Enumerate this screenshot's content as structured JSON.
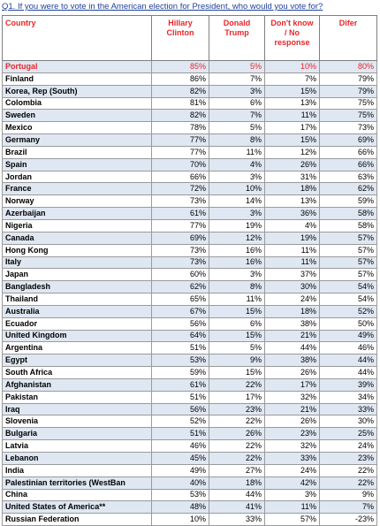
{
  "question": "Q1. If you were to vote in the American election for President, who would you vote for?",
  "columns": {
    "country": "Country",
    "clinton": [
      "Hillary",
      "Clinton"
    ],
    "trump": [
      "Donald",
      "Trump"
    ],
    "dontknow": [
      "Don't know",
      "/ No",
      "response"
    ],
    "differ": "Difer"
  },
  "rows": [
    {
      "country": "Portugal",
      "hc": "85%",
      "dt": "5%",
      "dk": "10%",
      "dif": "80%"
    },
    {
      "country": "Finland",
      "hc": "86%",
      "dt": "7%",
      "dk": "7%",
      "dif": "79%"
    },
    {
      "country": "Korea, Rep (South)",
      "hc": "82%",
      "dt": "3%",
      "dk": "15%",
      "dif": "79%"
    },
    {
      "country": "Colombia",
      "hc": "81%",
      "dt": "6%",
      "dk": "13%",
      "dif": "75%"
    },
    {
      "country": "Sweden",
      "hc": "82%",
      "dt": "7%",
      "dk": "11%",
      "dif": "75%"
    },
    {
      "country": "Mexico",
      "hc": "78%",
      "dt": "5%",
      "dk": "17%",
      "dif": "73%"
    },
    {
      "country": "Germany",
      "hc": "77%",
      "dt": "8%",
      "dk": "15%",
      "dif": "69%"
    },
    {
      "country": "Brazil",
      "hc": "77%",
      "dt": "11%",
      "dk": "12%",
      "dif": "66%"
    },
    {
      "country": "Spain",
      "hc": "70%",
      "dt": "4%",
      "dk": "26%",
      "dif": "66%"
    },
    {
      "country": "Jordan",
      "hc": "66%",
      "dt": "3%",
      "dk": "31%",
      "dif": "63%"
    },
    {
      "country": "France",
      "hc": "72%",
      "dt": "10%",
      "dk": "18%",
      "dif": "62%"
    },
    {
      "country": "Norway",
      "hc": "73%",
      "dt": "14%",
      "dk": "13%",
      "dif": "59%"
    },
    {
      "country": "Azerbaijan",
      "hc": "61%",
      "dt": "3%",
      "dk": "36%",
      "dif": "58%"
    },
    {
      "country": "Nigeria",
      "hc": "77%",
      "dt": "19%",
      "dk": "4%",
      "dif": "58%"
    },
    {
      "country": "Canada",
      "hc": "69%",
      "dt": "12%",
      "dk": "19%",
      "dif": "57%"
    },
    {
      "country": "Hong Kong",
      "hc": "73%",
      "dt": "16%",
      "dk": "11%",
      "dif": "57%"
    },
    {
      "country": "Italy",
      "hc": "73%",
      "dt": "16%",
      "dk": "11%",
      "dif": "57%"
    },
    {
      "country": "Japan",
      "hc": "60%",
      "dt": "3%",
      "dk": "37%",
      "dif": "57%"
    },
    {
      "country": "Bangladesh",
      "hc": "62%",
      "dt": "8%",
      "dk": "30%",
      "dif": "54%"
    },
    {
      "country": "Thailand",
      "hc": "65%",
      "dt": "11%",
      "dk": "24%",
      "dif": "54%"
    },
    {
      "country": "Australia",
      "hc": "67%",
      "dt": "15%",
      "dk": "18%",
      "dif": "52%"
    },
    {
      "country": "Ecuador",
      "hc": "56%",
      "dt": "6%",
      "dk": "38%",
      "dif": "50%"
    },
    {
      "country": "United Kingdom",
      "hc": "64%",
      "dt": "15%",
      "dk": "21%",
      "dif": "49%"
    },
    {
      "country": "Argentina",
      "hc": "51%",
      "dt": "5%",
      "dk": "44%",
      "dif": "46%"
    },
    {
      "country": "Egypt",
      "hc": "53%",
      "dt": "9%",
      "dk": "38%",
      "dif": "44%"
    },
    {
      "country": "South Africa",
      "hc": "59%",
      "dt": "15%",
      "dk": "26%",
      "dif": "44%"
    },
    {
      "country": "Afghanistan",
      "hc": "61%",
      "dt": "22%",
      "dk": "17%",
      "dif": "39%"
    },
    {
      "country": "Pakistan",
      "hc": "51%",
      "dt": "17%",
      "dk": "32%",
      "dif": "34%"
    },
    {
      "country": "Iraq",
      "hc": "56%",
      "dt": "23%",
      "dk": "21%",
      "dif": "33%"
    },
    {
      "country": "Slovenia",
      "hc": "52%",
      "dt": "22%",
      "dk": "26%",
      "dif": "30%"
    },
    {
      "country": "Bulgaria",
      "hc": "51%",
      "dt": "26%",
      "dk": "23%",
      "dif": "25%"
    },
    {
      "country": "Latvia",
      "hc": "46%",
      "dt": "22%",
      "dk": "32%",
      "dif": "24%"
    },
    {
      "country": "Lebanon",
      "hc": "45%",
      "dt": "22%",
      "dk": "33%",
      "dif": "23%"
    },
    {
      "country": "India",
      "hc": "49%",
      "dt": "27%",
      "dk": "24%",
      "dif": "22%"
    },
    {
      "country": "Palestinian territories (WestBan",
      "hc": "40%",
      "dt": "18%",
      "dk": "42%",
      "dif": "22%"
    },
    {
      "country": "China",
      "hc": "53%",
      "dt": "44%",
      "dk": "3%",
      "dif": "9%"
    },
    {
      "country": "United States of America**",
      "hc": "48%",
      "dt": "41%",
      "dk": "11%",
      "dif": "7%"
    },
    {
      "country": "Russian Federation",
      "hc": "10%",
      "dt": "33%",
      "dk": "57%",
      "dif": "-23%"
    }
  ],
  "highlight_row_index": 0,
  "colors": {
    "header_text": "#e8262b",
    "highlight_text": "#e8262b",
    "band": "#dfe7f2",
    "question_text": "#1f3f9a"
  }
}
